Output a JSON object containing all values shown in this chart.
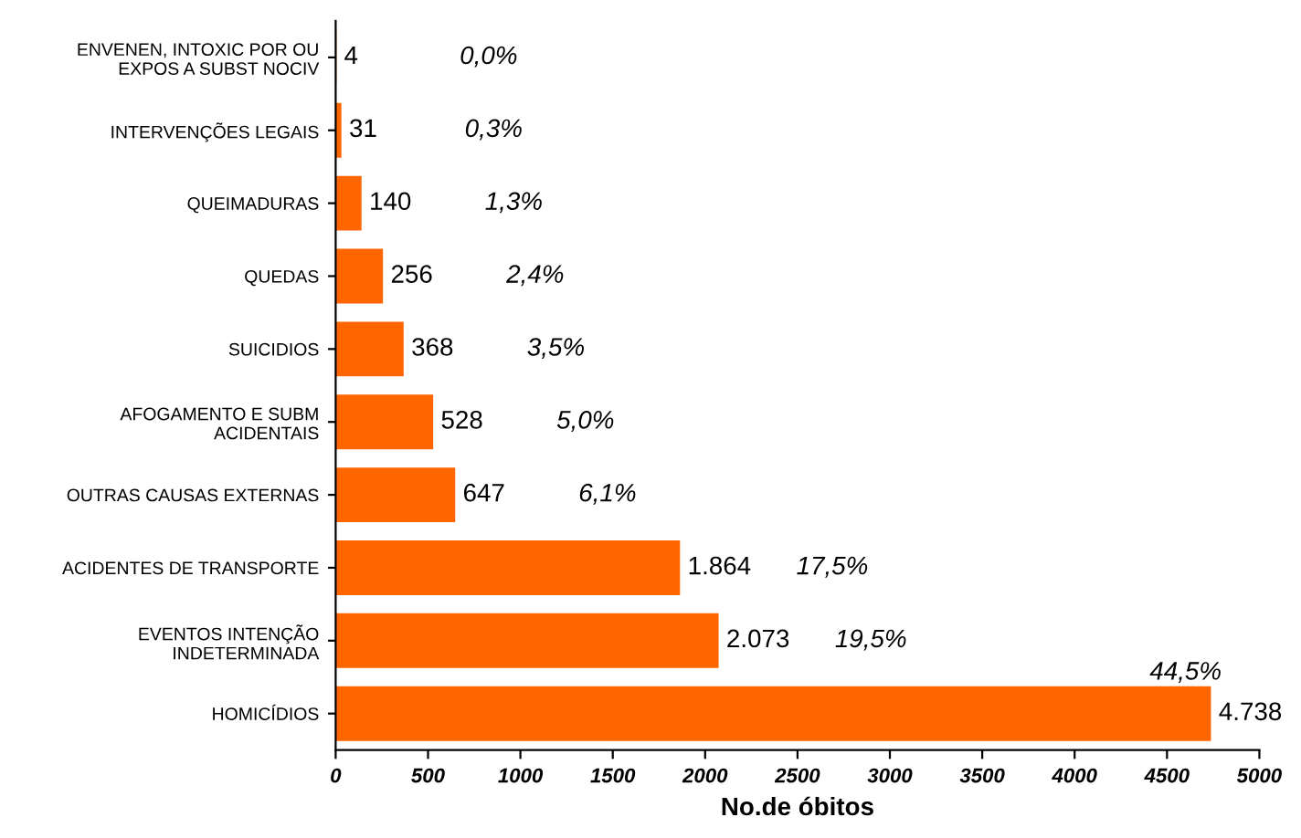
{
  "chart_data": {
    "type": "bar",
    "orientation": "horizontal",
    "xlabel": "No.de óbitos",
    "categories": [
      "ENVENEN, INTOXIC POR OU\nEXPOS A SUBST NOCIV",
      "INTERVENÇÕES LEGAIS",
      "QUEIMADURAS",
      "QUEDAS",
      "SUICIDIOS",
      "AFOGAMENTO E SUBM\nACIDENTAIS",
      "OUTRAS CAUSAS EXTERNAS",
      "ACIDENTES DE TRANSPORTE",
      "EVENTOS INTENÇÃO\nINDETERMINADA",
      "HOMICÍDIOS"
    ],
    "values": [
      4,
      31,
      140,
      256,
      368,
      528,
      647,
      1864,
      2073,
      4738
    ],
    "value_labels": [
      "4",
      "31",
      "140",
      "256",
      "368",
      "528",
      "647",
      "1.864",
      "2.073",
      "4.738"
    ],
    "color": "#ff6600",
    "xlim": [
      0,
      5000
    ],
    "xticks": [
      0,
      500,
      1000,
      1500,
      2000,
      2500,
      3000,
      3500,
      4000,
      4500,
      5000
    ],
    "grid": false,
    "legend": false,
    "annotations": [
      "0,0%",
      "0,3%",
      "1,3%",
      "2,4%",
      "3,5%",
      "5,0%",
      "6,1%",
      "17,5%",
      "19,5%",
      "44,5%"
    ]
  }
}
